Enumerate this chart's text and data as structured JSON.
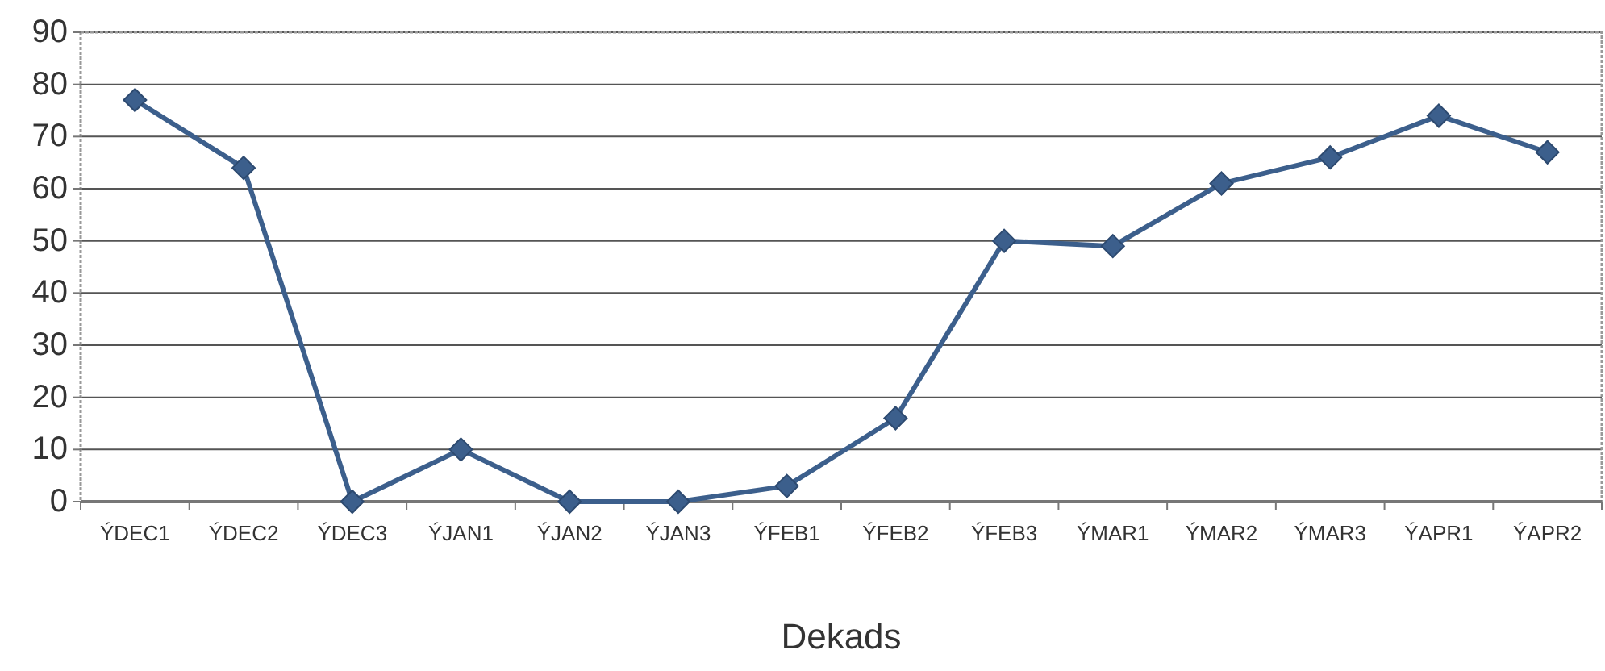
{
  "chart_data": {
    "type": "line",
    "xlabel": "Dekads",
    "categories": [
      "ÝDEC1",
      "ÝDEC2",
      "ÝDEC3",
      "ÝJAN1",
      "ÝJAN2",
      "ÝJAN3",
      "ÝFEB1",
      "ÝFEB2",
      "ÝFEB3",
      "ÝMAR1",
      "ÝMAR2",
      "ÝMAR3",
      "ÝAPR1",
      "ÝAPR2"
    ],
    "series": [
      {
        "color": "#3c5f8c",
        "values": [
          77,
          64,
          0,
          10,
          0,
          0,
          3,
          16,
          50,
          49,
          61,
          66,
          74,
          67
        ]
      }
    ],
    "ylim": [
      0,
      90
    ],
    "yticks": [
      0,
      10,
      20,
      30,
      40,
      50,
      60,
      70,
      80,
      90
    ],
    "grid": "y",
    "marker": "diamond",
    "line_style": "solid"
  }
}
